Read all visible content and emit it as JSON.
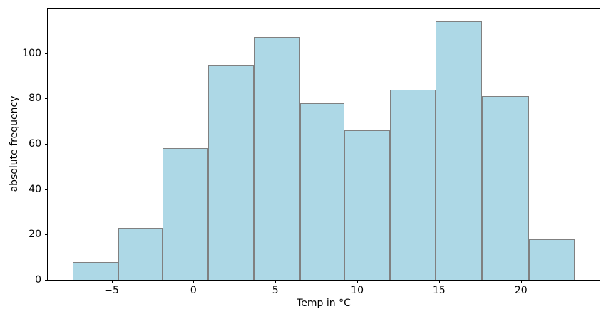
{
  "figure": {
    "background": "#ffffff"
  },
  "chart_data": {
    "type": "bar",
    "subtype": "histogram",
    "title": "",
    "xlabel": "Temp in °C",
    "ylabel": "absolute frequency",
    "bin_edges": [
      -7.4,
      -4.6,
      -1.9,
      0.9,
      3.7,
      6.5,
      9.2,
      12.0,
      14.8,
      17.6,
      20.5,
      23.3
    ],
    "values": [
      8,
      23,
      58,
      95,
      107,
      78,
      66,
      84,
      114,
      81,
      18
    ],
    "xlim": [
      -8.9,
      24.8
    ],
    "ylim": [
      0,
      119.7
    ],
    "x_tick_values": [
      -5,
      0,
      5,
      10,
      15,
      20
    ],
    "x_tick_labels": [
      "−5",
      "0",
      "5",
      "10",
      "15",
      "20"
    ],
    "y_tick_values": [
      0,
      20,
      40,
      60,
      80,
      100
    ],
    "y_tick_labels": [
      "0",
      "20",
      "40",
      "60",
      "80",
      "100"
    ],
    "grid": false,
    "legend_position": "none",
    "colors": {
      "bar_fill": "#add8e6",
      "bar_edge": "#808080",
      "axis": "#000000",
      "text": "#000000"
    }
  }
}
